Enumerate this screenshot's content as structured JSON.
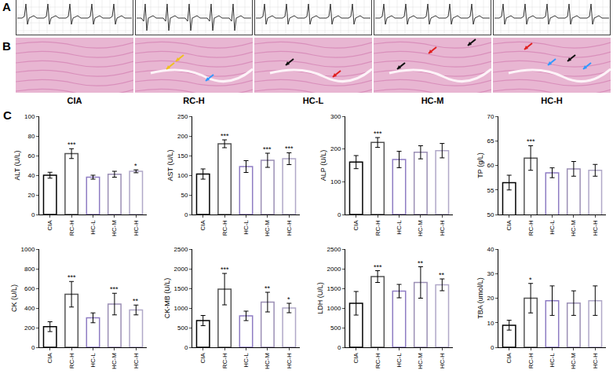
{
  "panel_labels": {
    "ecg": "A",
    "histology": "B",
    "biochemistry": "C"
  },
  "groups": [
    "CIA",
    "RC-H",
    "HC-L",
    "HC-M",
    "HC-H"
  ],
  "chart_data": [
    {
      "type": "bar",
      "ylabel": "ALT (U/L)",
      "categories": [
        "CIA",
        "RC-H",
        "HC-L",
        "HC-M",
        "HC-H"
      ],
      "values": [
        40,
        62,
        38,
        41,
        44
      ],
      "errors": [
        3,
        5,
        2,
        3,
        1.5
      ],
      "significance": [
        null,
        "***",
        null,
        null,
        "*"
      ],
      "colors": [
        "#000000",
        "#555555",
        "#8e7cc3",
        "#9b8fb5",
        "#b0a8c8"
      ],
      "ylim": [
        0,
        100
      ],
      "yticks": [
        0,
        20,
        40,
        60,
        80,
        100
      ],
      "grid": false
    },
    {
      "type": "bar",
      "ylabel": "AST (U/L)",
      "categories": [
        "CIA",
        "RC-H",
        "HC-L",
        "HC-M",
        "HC-H"
      ],
      "values": [
        103,
        180,
        122,
        138,
        142
      ],
      "errors": [
        13,
        10,
        15,
        18,
        15
      ],
      "significance": [
        null,
        "***",
        null,
        "***",
        "***"
      ],
      "colors": [
        "#000000",
        "#555555",
        "#8e7cc3",
        "#9b8fb5",
        "#b0a8c8"
      ],
      "ylim": [
        0,
        250
      ],
      "yticks": [
        0,
        50,
        100,
        150,
        200,
        250
      ],
      "grid": false
    },
    {
      "type": "bar",
      "ylabel": "ALP (U/L)",
      "categories": [
        "CIA",
        "RC-H",
        "HC-L",
        "HC-M",
        "HC-H"
      ],
      "values": [
        160,
        220,
        168,
        190,
        195
      ],
      "errors": [
        20,
        15,
        25,
        20,
        22
      ],
      "significance": [
        null,
        "***",
        null,
        null,
        null
      ],
      "colors": [
        "#000000",
        "#555555",
        "#8e7cc3",
        "#9b8fb5",
        "#b0a8c8"
      ],
      "ylim": [
        0,
        300
      ],
      "yticks": [
        0,
        100,
        200,
        300
      ],
      "grid": false
    },
    {
      "type": "bar",
      "ylabel": "TP (g/L)",
      "categories": [
        "CIA",
        "RC-H",
        "HC-L",
        "HC-M",
        "HC-H"
      ],
      "values": [
        56.5,
        61.5,
        58.5,
        59.3,
        59
      ],
      "errors": [
        1.5,
        2.5,
        1,
        1.5,
        1.2
      ],
      "significance": [
        null,
        "***",
        null,
        null,
        null
      ],
      "colors": [
        "#000000",
        "#555555",
        "#8e7cc3",
        "#9b8fb5",
        "#b0a8c8"
      ],
      "ylim": [
        50,
        70
      ],
      "yticks": [
        50,
        55,
        60,
        65,
        70
      ],
      "grid": false
    },
    {
      "type": "bar",
      "ylabel": "CK (U/L)",
      "categories": [
        "CIA",
        "RC-H",
        "HC-L",
        "HC-M",
        "HC-H"
      ],
      "values": [
        210,
        540,
        300,
        440,
        380
      ],
      "errors": [
        50,
        130,
        50,
        110,
        50
      ],
      "significance": [
        null,
        "***",
        null,
        "***",
        "**"
      ],
      "colors": [
        "#000000",
        "#555555",
        "#8e7cc3",
        "#9b8fb5",
        "#b0a8c8"
      ],
      "ylim": [
        0,
        1000
      ],
      "yticks": [
        0,
        200,
        400,
        600,
        800,
        1000
      ],
      "grid": false
    },
    {
      "type": "bar",
      "ylabel": "CK-MB (U/L)",
      "categories": [
        "CIA",
        "RC-H",
        "HC-L",
        "HC-M",
        "HC-H"
      ],
      "values": [
        680,
        1480,
        800,
        1150,
        1000
      ],
      "errors": [
        130,
        400,
        120,
        250,
        120
      ],
      "significance": [
        null,
        "***",
        null,
        "**",
        "*"
      ],
      "colors": [
        "#000000",
        "#555555",
        "#8e7cc3",
        "#9b8fb5",
        "#b0a8c8"
      ],
      "ylim": [
        0,
        2500
      ],
      "yticks": [
        0,
        500,
        1000,
        1500,
        2000,
        2500
      ],
      "grid": false
    },
    {
      "type": "bar",
      "ylabel": "LDH (U/L)",
      "categories": [
        "CIA",
        "RC-H",
        "HC-L",
        "HC-M",
        "HC-H"
      ],
      "values": [
        1120,
        1800,
        1430,
        1650,
        1590
      ],
      "errors": [
        300,
        150,
        170,
        400,
        150
      ],
      "significance": [
        null,
        "***",
        null,
        "**",
        "**"
      ],
      "colors": [
        "#000000",
        "#555555",
        "#8e7cc3",
        "#9b8fb5",
        "#b0a8c8"
      ],
      "ylim": [
        0,
        2500
      ],
      "yticks": [
        0,
        500,
        1000,
        1500,
        2000,
        2500
      ],
      "grid": false
    },
    {
      "type": "bar",
      "ylabel": "TBA (umol/L)",
      "categories": [
        "CIA",
        "RC-H",
        "HC-L",
        "HC-M",
        "HC-H"
      ],
      "values": [
        9,
        20,
        19,
        18,
        19
      ],
      "errors": [
        2,
        6,
        6,
        5,
        6
      ],
      "significance": [
        null,
        "*",
        null,
        null,
        null
      ],
      "colors": [
        "#000000",
        "#555555",
        "#8e7cc3",
        "#9b8fb5",
        "#b0a8c8"
      ],
      "ylim": [
        0,
        40
      ],
      "yticks": [
        0,
        10,
        20,
        30,
        40
      ],
      "grid": false
    }
  ]
}
